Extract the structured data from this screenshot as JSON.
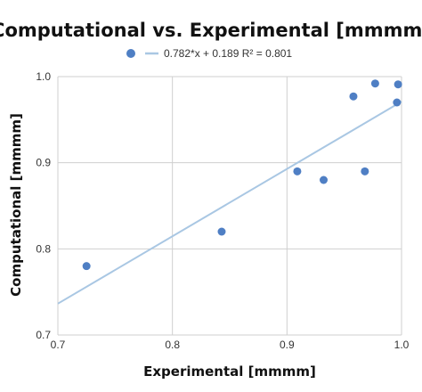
{
  "chart_data": {
    "type": "scatter",
    "title": "Computational vs. Experimental [mmmm]",
    "xlabel": "Experimental [mmmm]",
    "ylabel": "Computational [mmmm]",
    "xlim": [
      0.7,
      1.0
    ],
    "ylim": [
      0.7,
      1.0
    ],
    "x_ticks": [
      "0.7",
      "0.8",
      "0.9",
      "1.0"
    ],
    "y_ticks": [
      "0.7",
      "0.8",
      "0.9",
      "1.0"
    ],
    "grid": true,
    "legend_position": "top",
    "series": [
      {
        "x": [
          0.725,
          0.843,
          0.909,
          0.932,
          0.958,
          0.968,
          0.977,
          0.996,
          0.997
        ],
        "y": [
          0.78,
          0.82,
          0.89,
          0.88,
          0.977,
          0.89,
          0.992,
          0.97,
          0.991
        ],
        "color": "#4f7fc4"
      }
    ],
    "trendline": {
      "label": "0.782*x + 0.189 R² = 0.801",
      "slope": 0.782,
      "intercept": 0.189,
      "color": "#a9c7e3"
    }
  }
}
